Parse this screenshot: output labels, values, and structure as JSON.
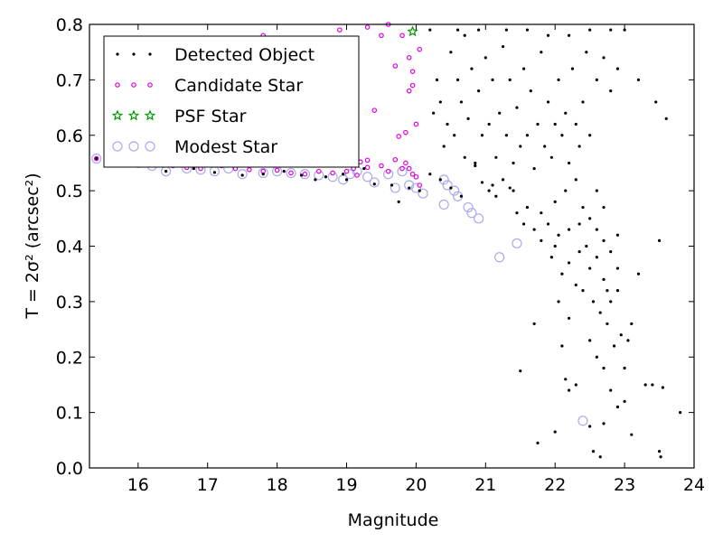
{
  "chart_data": {
    "type": "scatter",
    "xlabel": "Magnitude",
    "ylabel": "T = 2σ² (arcsec²)",
    "xlim": [
      15.3,
      24
    ],
    "ylim": [
      0.0,
      0.8
    ],
    "xticks": [
      "16",
      "17",
      "18",
      "19",
      "20",
      "21",
      "22",
      "23",
      "24"
    ],
    "yticks": [
      "0.0",
      "0.1",
      "0.2",
      "0.3",
      "0.4",
      "0.5",
      "0.6",
      "0.7",
      "0.8"
    ],
    "grid": false,
    "legend_position": "top-left",
    "legend": [
      {
        "label": "Detected Object",
        "color": "#000000",
        "marker": "dot"
      },
      {
        "label": "Candidate Star",
        "color": "#e000e0",
        "marker": "small-circle"
      },
      {
        "label": "PSF Star",
        "color": "#009900",
        "marker": "star"
      },
      {
        "label": "Modest Star",
        "color": "#aaaaee",
        "marker": "open-circle"
      }
    ],
    "series": [
      {
        "name": "Modest Star",
        "color": "#aaaaee",
        "points": [
          [
            15.4,
            0.558
          ],
          [
            15.7,
            0.555
          ],
          [
            16.0,
            0.55
          ],
          [
            16.2,
            0.545
          ],
          [
            16.4,
            0.535
          ],
          [
            16.7,
            0.54
          ],
          [
            16.9,
            0.538
          ],
          [
            17.1,
            0.535
          ],
          [
            17.3,
            0.54
          ],
          [
            17.5,
            0.53
          ],
          [
            17.8,
            0.532
          ],
          [
            18.0,
            0.535
          ],
          [
            18.2,
            0.532
          ],
          [
            18.4,
            0.53
          ],
          [
            18.6,
            0.528
          ],
          [
            18.8,
            0.525
          ],
          [
            18.95,
            0.52
          ],
          [
            19.05,
            0.53
          ],
          [
            19.15,
            0.535
          ],
          [
            19.3,
            0.525
          ],
          [
            19.4,
            0.515
          ],
          [
            19.6,
            0.53
          ],
          [
            19.7,
            0.505
          ],
          [
            19.8,
            0.535
          ],
          [
            19.9,
            0.51
          ],
          [
            20.0,
            0.505
          ],
          [
            20.1,
            0.495
          ],
          [
            20.4,
            0.52
          ],
          [
            20.45,
            0.51
          ],
          [
            20.55,
            0.5
          ],
          [
            20.6,
            0.49
          ],
          [
            20.4,
            0.475
          ],
          [
            20.75,
            0.47
          ],
          [
            20.8,
            0.46
          ],
          [
            20.9,
            0.45
          ],
          [
            21.2,
            0.38
          ],
          [
            21.45,
            0.405
          ],
          [
            22.4,
            0.085
          ]
        ]
      },
      {
        "name": "Candidate Star",
        "color": "#e000e0",
        "points": [
          [
            15.4,
            0.558
          ],
          [
            15.6,
            0.557
          ],
          [
            15.8,
            0.556
          ],
          [
            16.0,
            0.552
          ],
          [
            16.2,
            0.548
          ],
          [
            16.5,
            0.545
          ],
          [
            16.7,
            0.542
          ],
          [
            16.9,
            0.54
          ],
          [
            17.2,
            0.545
          ],
          [
            17.4,
            0.54
          ],
          [
            17.6,
            0.538
          ],
          [
            17.8,
            0.535
          ],
          [
            18.0,
            0.537
          ],
          [
            18.2,
            0.532
          ],
          [
            18.4,
            0.53
          ],
          [
            18.6,
            0.535
          ],
          [
            18.8,
            0.532
          ],
          [
            19.0,
            0.535
          ],
          [
            19.1,
            0.54
          ],
          [
            19.2,
            0.552
          ],
          [
            19.3,
            0.555
          ],
          [
            19.5,
            0.545
          ],
          [
            19.6,
            0.535
          ],
          [
            19.7,
            0.556
          ],
          [
            19.8,
            0.54
          ],
          [
            19.85,
            0.55
          ],
          [
            19.9,
            0.54
          ],
          [
            19.95,
            0.53
          ],
          [
            20.0,
            0.525
          ],
          [
            20.05,
            0.51
          ],
          [
            19.75,
            0.598
          ],
          [
            19.85,
            0.605
          ],
          [
            19.9,
            0.68
          ],
          [
            19.95,
            0.69
          ],
          [
            20.0,
            0.62
          ],
          [
            19.4,
            0.645
          ],
          [
            19.7,
            0.725
          ],
          [
            19.8,
            0.78
          ],
          [
            19.9,
            0.74
          ],
          [
            19.95,
            0.715
          ],
          [
            20.05,
            0.755
          ],
          [
            19.3,
            0.795
          ],
          [
            19.5,
            0.78
          ],
          [
            19.6,
            0.8
          ],
          [
            18.9,
            0.79
          ],
          [
            17.8,
            0.78
          ],
          [
            19.3,
            0.542
          ],
          [
            19.15,
            0.528
          ]
        ]
      },
      {
        "name": "PSF Star",
        "color": "#009900",
        "points": [
          [
            19.95,
            0.787
          ]
        ]
      },
      {
        "name": "Detected Object",
        "color": "#000000",
        "points": [
          [
            15.4,
            0.558
          ],
          [
            15.8,
            0.556
          ],
          [
            16.1,
            0.552
          ],
          [
            16.4,
            0.535
          ],
          [
            16.8,
            0.54
          ],
          [
            17.1,
            0.533
          ],
          [
            17.5,
            0.528
          ],
          [
            17.8,
            0.53
          ],
          [
            18.1,
            0.535
          ],
          [
            18.35,
            0.528
          ],
          [
            18.55,
            0.52
          ],
          [
            18.7,
            0.525
          ],
          [
            18.95,
            0.53
          ],
          [
            19.0,
            0.52
          ],
          [
            19.25,
            0.54
          ],
          [
            19.4,
            0.512
          ],
          [
            19.65,
            0.51
          ],
          [
            19.75,
            0.48
          ],
          [
            19.9,
            0.505
          ],
          [
            20.05,
            0.5
          ],
          [
            20.2,
            0.53
          ],
          [
            20.35,
            0.52
          ],
          [
            20.5,
            0.505
          ],
          [
            20.65,
            0.49
          ],
          [
            20.7,
            0.56
          ],
          [
            20.85,
            0.545
          ],
          [
            20.95,
            0.515
          ],
          [
            21.05,
            0.5
          ],
          [
            21.15,
            0.49
          ],
          [
            21.25,
            0.52
          ],
          [
            21.35,
            0.505
          ],
          [
            21.45,
            0.46
          ],
          [
            21.55,
            0.44
          ],
          [
            21.6,
            0.47
          ],
          [
            21.7,
            0.43
          ],
          [
            21.8,
            0.41
          ],
          [
            21.9,
            0.44
          ],
          [
            21.95,
            0.38
          ],
          [
            22.0,
            0.4
          ],
          [
            22.05,
            0.42
          ],
          [
            22.1,
            0.35
          ],
          [
            22.2,
            0.37
          ],
          [
            22.3,
            0.33
          ],
          [
            22.35,
            0.44
          ],
          [
            22.45,
            0.4
          ],
          [
            22.5,
            0.36
          ],
          [
            22.55,
            0.3
          ],
          [
            22.6,
            0.38
          ],
          [
            22.65,
            0.28
          ],
          [
            22.7,
            0.34
          ],
          [
            22.75,
            0.26
          ],
          [
            22.8,
            0.3
          ],
          [
            22.85,
            0.22
          ],
          [
            22.9,
            0.32
          ],
          [
            22.95,
            0.24
          ],
          [
            23.0,
            0.18
          ],
          [
            23.05,
            0.23
          ],
          [
            23.1,
            0.26
          ],
          [
            23.2,
            0.35
          ],
          [
            23.3,
            0.15
          ],
          [
            23.4,
            0.15
          ],
          [
            23.5,
            0.41
          ],
          [
            23.55,
            0.145
          ],
          [
            23.6,
            0.63
          ],
          [
            23.5,
            0.03
          ],
          [
            23.52,
            0.02
          ],
          [
            23.8,
            0.1
          ],
          [
            23.45,
            0.66
          ],
          [
            23.2,
            0.7
          ],
          [
            23.0,
            0.79
          ],
          [
            22.9,
            0.72
          ],
          [
            22.8,
            0.68
          ],
          [
            22.7,
            0.74
          ],
          [
            22.6,
            0.7
          ],
          [
            22.5,
            0.6
          ],
          [
            22.45,
            0.75
          ],
          [
            22.4,
            0.66
          ],
          [
            22.35,
            0.58
          ],
          [
            22.3,
            0.62
          ],
          [
            22.25,
            0.72
          ],
          [
            22.2,
            0.55
          ],
          [
            22.15,
            0.64
          ],
          [
            22.1,
            0.6
          ],
          [
            22.05,
            0.7
          ],
          [
            22.0,
            0.62
          ],
          [
            21.95,
            0.56
          ],
          [
            21.9,
            0.66
          ],
          [
            21.85,
            0.58
          ],
          [
            21.8,
            0.75
          ],
          [
            21.75,
            0.62
          ],
          [
            21.7,
            0.54
          ],
          [
            21.65,
            0.68
          ],
          [
            21.6,
            0.6
          ],
          [
            21.55,
            0.72
          ],
          [
            21.5,
            0.58
          ],
          [
            21.45,
            0.65
          ],
          [
            21.4,
            0.55
          ],
          [
            21.35,
            0.7
          ],
          [
            21.3,
            0.6
          ],
          [
            21.25,
            0.76
          ],
          [
            21.2,
            0.64
          ],
          [
            21.15,
            0.56
          ],
          [
            21.1,
            0.7
          ],
          [
            21.05,
            0.62
          ],
          [
            21.0,
            0.74
          ],
          [
            20.95,
            0.6
          ],
          [
            20.9,
            0.68
          ],
          [
            20.85,
            0.55
          ],
          [
            20.8,
            0.72
          ],
          [
            20.75,
            0.63
          ],
          [
            20.7,
            0.78
          ],
          [
            20.65,
            0.66
          ],
          [
            20.6,
            0.7
          ],
          [
            20.55,
            0.6
          ],
          [
            20.5,
            0.75
          ],
          [
            20.45,
            0.62
          ],
          [
            20.4,
            0.58
          ],
          [
            20.35,
            0.66
          ],
          [
            20.3,
            0.7
          ],
          [
            20.25,
            0.64
          ],
          [
            20.2,
            0.79
          ],
          [
            20.6,
            0.79
          ],
          [
            20.9,
            0.79
          ],
          [
            21.3,
            0.79
          ],
          [
            21.6,
            0.79
          ],
          [
            21.9,
            0.78
          ],
          [
            22.2,
            0.78
          ],
          [
            22.5,
            0.79
          ],
          [
            22.8,
            0.79
          ],
          [
            21.1,
            0.51
          ],
          [
            21.4,
            0.5
          ],
          [
            21.6,
            0.47
          ],
          [
            21.8,
            0.46
          ],
          [
            22.0,
            0.48
          ],
          [
            22.15,
            0.5
          ],
          [
            22.3,
            0.52
          ],
          [
            22.4,
            0.47
          ],
          [
            22.5,
            0.45
          ],
          [
            22.6,
            0.43
          ],
          [
            22.7,
            0.41
          ],
          [
            22.8,
            0.39
          ],
          [
            22.6,
            0.5
          ],
          [
            22.7,
            0.47
          ],
          [
            22.9,
            0.42
          ],
          [
            22.2,
            0.43
          ],
          [
            22.35,
            0.39
          ],
          [
            21.7,
            0.26
          ],
          [
            21.5,
            0.175
          ],
          [
            21.75,
            0.045
          ],
          [
            22.0,
            0.065
          ],
          [
            22.1,
            0.22
          ],
          [
            22.15,
            0.16
          ],
          [
            22.2,
            0.14
          ],
          [
            22.3,
            0.15
          ],
          [
            22.5,
            0.075
          ],
          [
            22.55,
            0.03
          ],
          [
            22.65,
            0.02
          ],
          [
            22.7,
            0.08
          ],
          [
            22.9,
            0.11
          ],
          [
            23.1,
            0.06
          ],
          [
            22.05,
            0.3
          ],
          [
            22.2,
            0.27
          ],
          [
            22.4,
            0.32
          ],
          [
            22.5,
            0.23
          ],
          [
            22.6,
            0.2
          ],
          [
            22.7,
            0.18
          ],
          [
            22.8,
            0.14
          ],
          [
            23.0,
            0.12
          ],
          [
            22.9,
            0.36
          ],
          [
            22.75,
            0.32
          ]
        ]
      }
    ]
  }
}
